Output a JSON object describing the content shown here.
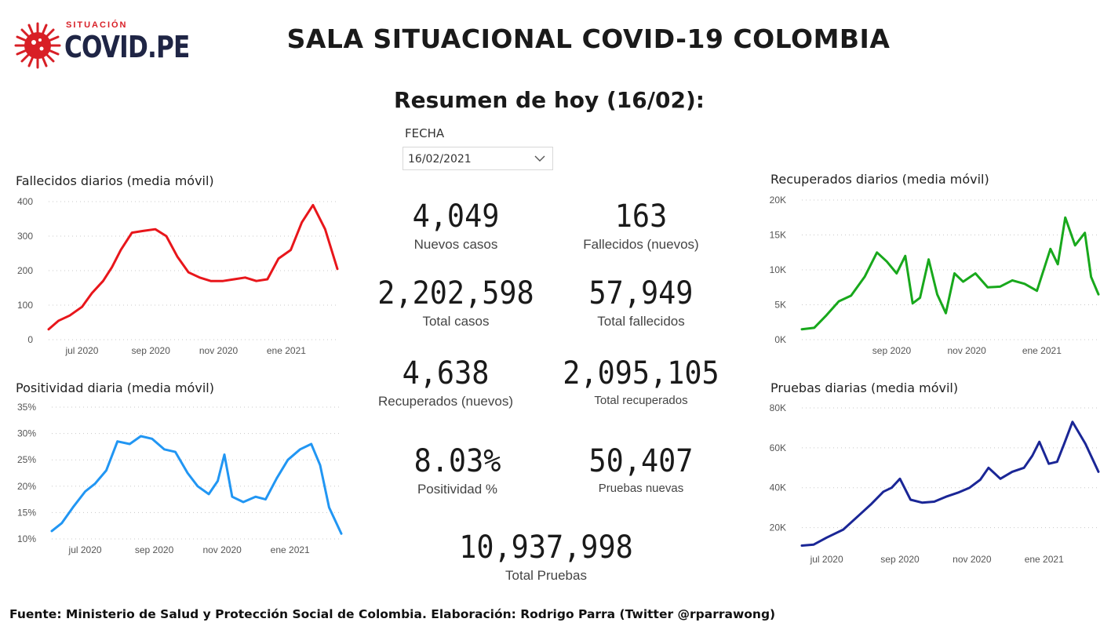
{
  "header": {
    "logo_small": "SITUACIÓN",
    "logo_big": "COVID.PE",
    "title": "SALA SITUACIONAL COVID-19 COLOMBIA",
    "subtitle": "Resumen de hoy (16/02):"
  },
  "filter": {
    "label": "FECHA",
    "value": "16/02/2021"
  },
  "kpis": {
    "nuevos_casos": {
      "value": "4,049",
      "label": "Nuevos casos"
    },
    "fallecidos_nuevos": {
      "value": "163",
      "label": "Fallecidos (nuevos)"
    },
    "total_casos": {
      "value": "2,202,598",
      "label": "Total casos"
    },
    "total_fallecidos": {
      "value": "57,949",
      "label": "Total fallecidos"
    },
    "recuperados_nuevos": {
      "value": "4,638",
      "label": "Recuperados (nuevos)"
    },
    "total_recuperados": {
      "value": "2,095,105",
      "label": "Total recuperados"
    },
    "positividad": {
      "value": "8.03%",
      "label": "Positividad %"
    },
    "pruebas_nuevas": {
      "value": "50,407",
      "label": "Pruebas nuevas"
    },
    "total_pruebas": {
      "value": "10,937,998",
      "label": "Total Pruebas"
    }
  },
  "footer": "Fuente: Ministerio de Salud y Protección Social de Colombia. Elaboración: Rodrigo Parra (Twitter @rparrawong)",
  "chart_data": [
    {
      "id": "fallecidos",
      "type": "line",
      "title": "Fallecidos diarios (media móvil)",
      "color": "#e8161b",
      "x_start": "2020-06-01",
      "x_end": "2021-02-16",
      "x_ticks": [
        "jul 2020",
        "sep 2020",
        "nov 2020",
        "ene 2021"
      ],
      "x_tick_dates": [
        "2020-07-01",
        "2020-09-01",
        "2020-11-01",
        "2021-01-01"
      ],
      "y_ticks": [
        0,
        100,
        200,
        300,
        400
      ],
      "y_tick_labels": [
        "0",
        "100",
        "200",
        "300",
        "400"
      ],
      "ylim": [
        0,
        400
      ],
      "grid": true,
      "series": [
        {
          "x": [
            "2020-06-01",
            "2020-06-10",
            "2020-06-20",
            "2020-07-01",
            "2020-07-10",
            "2020-07-20",
            "2020-07-28",
            "2020-08-05",
            "2020-08-15",
            "2020-08-25",
            "2020-09-05",
            "2020-09-15",
            "2020-09-25",
            "2020-10-05",
            "2020-10-15",
            "2020-10-25",
            "2020-11-05",
            "2020-11-15",
            "2020-11-25",
            "2020-12-05",
            "2020-12-15",
            "2020-12-25",
            "2021-01-05",
            "2021-01-15",
            "2021-01-25",
            "2021-02-05",
            "2021-02-16"
          ],
          "y": [
            30,
            55,
            70,
            95,
            135,
            170,
            210,
            260,
            310,
            315,
            320,
            300,
            240,
            195,
            180,
            170,
            170,
            175,
            180,
            170,
            175,
            235,
            260,
            340,
            390,
            320,
            205
          ]
        }
      ]
    },
    {
      "id": "recuperados",
      "type": "line",
      "title": "Recuperados diarios (media móvil)",
      "color": "#18a81c",
      "x_start": "2020-06-20",
      "x_end": "2021-02-16",
      "x_ticks": [
        "sep 2020",
        "nov 2020",
        "ene 2021"
      ],
      "x_tick_dates": [
        "2020-09-01",
        "2020-11-01",
        "2021-01-01"
      ],
      "y_ticks": [
        0,
        5000,
        10000,
        15000,
        20000
      ],
      "y_tick_labels": [
        "0K",
        "5K",
        "10K",
        "15K",
        "20K"
      ],
      "ylim": [
        0,
        20000
      ],
      "grid": true,
      "series": [
        {
          "x": [
            "2020-06-20",
            "2020-06-30",
            "2020-07-10",
            "2020-07-20",
            "2020-07-30",
            "2020-08-10",
            "2020-08-20",
            "2020-08-28",
            "2020-09-05",
            "2020-09-12",
            "2020-09-18",
            "2020-09-24",
            "2020-10-01",
            "2020-10-08",
            "2020-10-15",
            "2020-10-22",
            "2020-10-29",
            "2020-11-08",
            "2020-11-18",
            "2020-11-28",
            "2020-12-08",
            "2020-12-18",
            "2020-12-28",
            "2021-01-08",
            "2021-01-14",
            "2021-01-20",
            "2021-01-28",
            "2021-02-05",
            "2021-02-10",
            "2021-02-16"
          ],
          "y": [
            1500,
            1700,
            3500,
            5500,
            6300,
            9000,
            12500,
            11200,
            9500,
            12000,
            5200,
            6000,
            11500,
            6500,
            3800,
            9500,
            8300,
            9500,
            7500,
            7600,
            8500,
            8000,
            7000,
            13000,
            10800,
            17500,
            13500,
            15300,
            9000,
            6500
          ]
        }
      ]
    },
    {
      "id": "positividad",
      "type": "line",
      "title": "Positividad diaria (media móvil)",
      "color": "#2196f3",
      "x_start": "2020-06-01",
      "x_end": "2021-02-16",
      "x_ticks": [
        "jul 2020",
        "sep 2020",
        "nov 2020",
        "ene 2021"
      ],
      "x_tick_dates": [
        "2020-07-01",
        "2020-09-01",
        "2020-11-01",
        "2021-01-01"
      ],
      "y_ticks": [
        10,
        15,
        20,
        25,
        30,
        35
      ],
      "y_tick_labels": [
        "10%",
        "15%",
        "20%",
        "25%",
        "30%",
        "35%"
      ],
      "ylim": [
        10,
        35
      ],
      "grid": true,
      "series": [
        {
          "x": [
            "2020-06-01",
            "2020-06-10",
            "2020-06-20",
            "2020-07-01",
            "2020-07-10",
            "2020-07-20",
            "2020-07-30",
            "2020-08-10",
            "2020-08-20",
            "2020-08-30",
            "2020-09-10",
            "2020-09-20",
            "2020-10-01",
            "2020-10-10",
            "2020-10-20",
            "2020-10-28",
            "2020-11-03",
            "2020-11-10",
            "2020-11-20",
            "2020-12-01",
            "2020-12-10",
            "2020-12-20",
            "2020-12-30",
            "2021-01-10",
            "2021-01-20",
            "2021-01-28",
            "2021-02-05",
            "2021-02-16"
          ],
          "y": [
            11.5,
            13,
            16,
            19,
            20.5,
            23,
            28.5,
            28,
            29.5,
            29,
            27,
            26.5,
            22.5,
            20,
            18.5,
            21,
            26,
            18,
            17,
            18,
            17.5,
            21.5,
            25,
            27,
            28,
            24,
            16,
            11
          ]
        }
      ]
    },
    {
      "id": "pruebas",
      "type": "line",
      "title": "Pruebas diarias (media móvil)",
      "color": "#1a2696",
      "x_start": "2020-06-10",
      "x_end": "2021-02-16",
      "x_ticks": [
        "jul 2020",
        "sep 2020",
        "nov 2020",
        "ene 2021"
      ],
      "x_tick_dates": [
        "2020-07-01",
        "2020-09-01",
        "2020-11-01",
        "2021-01-01"
      ],
      "y_ticks": [
        20000,
        40000,
        60000,
        80000
      ],
      "y_tick_labels": [
        "20K",
        "40K",
        "60K",
        "80K"
      ],
      "ylim": [
        10000,
        80000
      ],
      "grid": true,
      "series": [
        {
          "x": [
            "2020-06-10",
            "2020-06-20",
            "2020-07-01",
            "2020-07-15",
            "2020-07-28",
            "2020-08-08",
            "2020-08-18",
            "2020-08-25",
            "2020-09-01",
            "2020-09-10",
            "2020-09-20",
            "2020-09-30",
            "2020-10-10",
            "2020-10-20",
            "2020-10-30",
            "2020-11-08",
            "2020-11-15",
            "2020-11-25",
            "2020-12-05",
            "2020-12-15",
            "2020-12-22",
            "2020-12-28",
            "2021-01-05",
            "2021-01-12",
            "2021-01-18",
            "2021-01-25",
            "2021-02-05",
            "2021-02-16"
          ],
          "y": [
            11000,
            11500,
            15000,
            19000,
            26000,
            32000,
            38000,
            40000,
            44500,
            34000,
            32500,
            33000,
            35500,
            37500,
            40000,
            44000,
            50000,
            44500,
            48000,
            50000,
            56000,
            63000,
            52000,
            53000,
            62000,
            73000,
            62000,
            48000
          ]
        }
      ]
    }
  ]
}
